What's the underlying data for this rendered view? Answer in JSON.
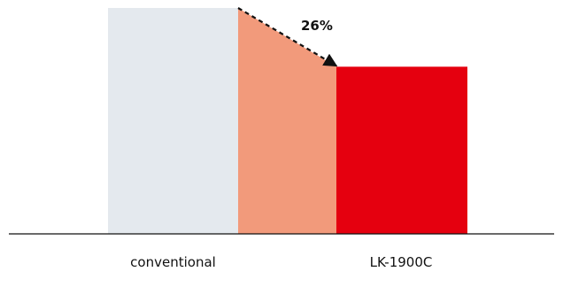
{
  "chart_data": {
    "type": "bar",
    "categories": [
      "conventional",
      "LK-1900C"
    ],
    "values": [
      100,
      74
    ],
    "ylim": [
      0,
      100
    ],
    "grid": false,
    "annotation": {
      "text": "26%",
      "style": "dashed arrow from the top of the conventional bar down to the top of the LK-1900C bar"
    },
    "colors": {
      "conventional": "#e4e9ee",
      "reduction_band": "#f29a7b",
      "lk1900c": "#e5000f",
      "baseline": "#111111",
      "arrow": "#111111"
    }
  }
}
